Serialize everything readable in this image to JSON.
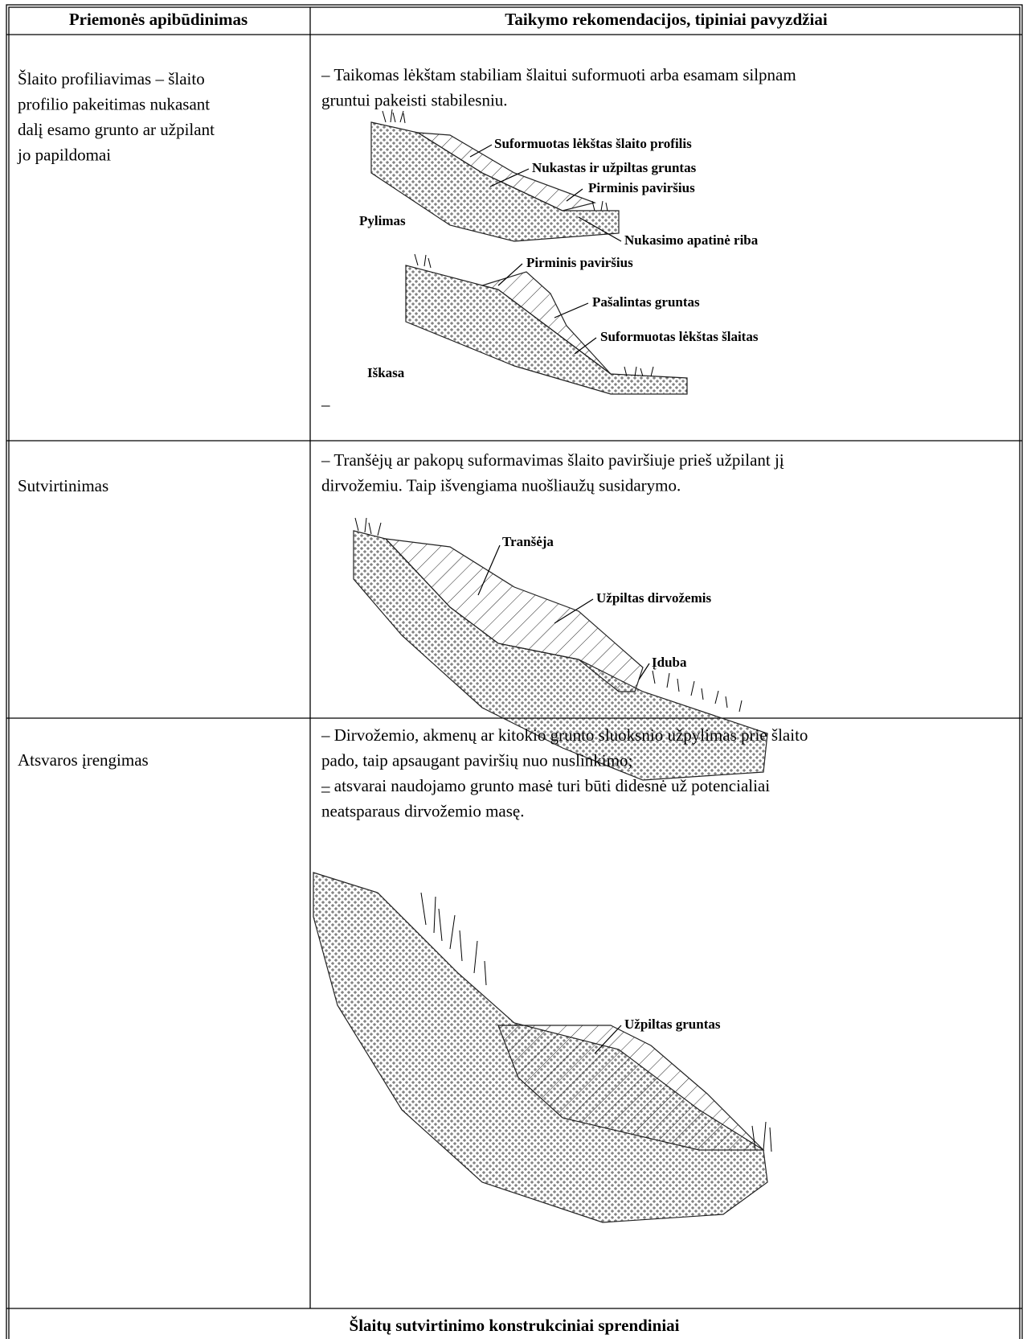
{
  "table": {
    "header": [
      "Priemonės apibūdinimas",
      "Taikymo rekomendacijos, tipiniai pavyzdžiai"
    ],
    "rows": [
      {
        "measure": [
          "Šlaito profiliavimas – šlaito",
          "profilio pakeitimas nukasant",
          "dalį esamo grunto ar užpilant",
          "jo papildomai"
        ],
        "recommendation": [
          "– Taikomas lėkštam stabiliam šlaitui suformuoti arba esamam silpnam",
          "gruntui pakeisti stabilesniu."
        ],
        "figure_labels": [
          "Suformuotas lėkštas šlaito profilis",
          "Nukastas ir užpiltas gruntas",
          "Pirminis paviršius",
          "Pylimas",
          "Nukasimo apatinė riba",
          "Pirminis paviršius",
          "Pašalintas gruntas",
          "Suformuotas lėkštas šlaitas",
          "Iškasa"
        ],
        "closing": "–"
      },
      {
        "measure": [
          "Sutvirtinimas"
        ],
        "recommendation": [
          "– Tranšėjų ar pakopų suformavimas šlaito paviršiuje prieš užpilant jį",
          "dirvožemiu. Taip išvengiama nuošliaužų susidarymo."
        ],
        "figure_labels": [
          "Tranšėja",
          "Užpiltas dirvožemis",
          "Įduba"
        ],
        "closing": "–"
      },
      {
        "measure": [
          "Atsvaros įrengimas"
        ],
        "recommendation": [
          "– Dirvožemio, akmenų ar kitokio grunto sluoksnio užpylimas prie šlaito",
          "pado, taip apsaugant paviršių nuo nuslinkimo;",
          "– atsvarai naudojamo grunto masė turi būti didesnė už potencialiai",
          "neatsparaus dirvožemio masę."
        ],
        "figure_labels": [
          "Užpiltas gruntas"
        ]
      }
    ],
    "footer": "Šlaitų sutvirtinimo konstrukciniai sprendiniai"
  }
}
